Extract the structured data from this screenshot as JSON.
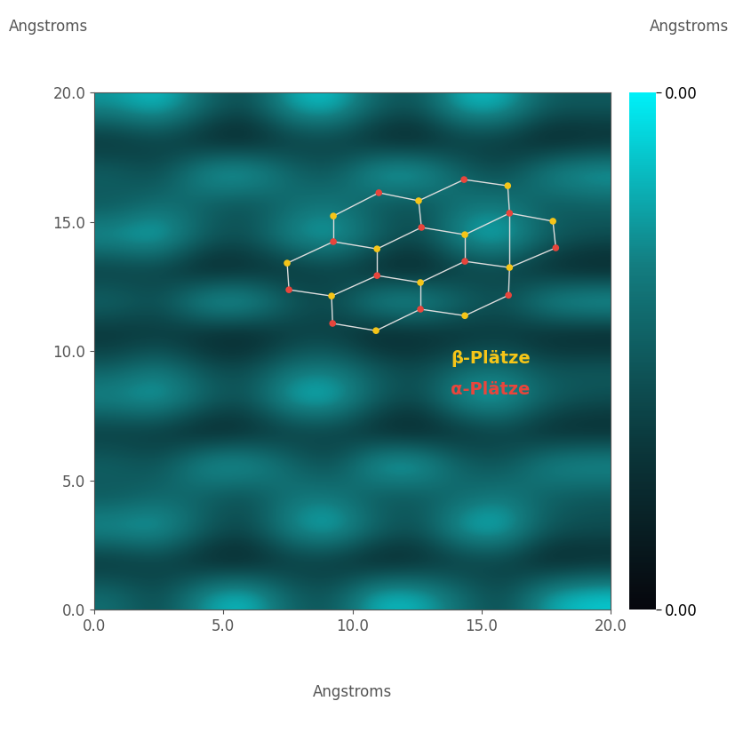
{
  "chart_data": {
    "type": "heatmap",
    "xlabel": "Angstroms",
    "ylabel": "Angstroms",
    "colorbar_label": "Angstroms",
    "xlim": [
      0,
      20
    ],
    "ylim": [
      0,
      20
    ],
    "xticks": [
      {
        "value": 0,
        "label": "0.0"
      },
      {
        "value": 5,
        "label": "5.0"
      },
      {
        "value": 10,
        "label": "10.0"
      },
      {
        "value": 15,
        "label": "15.0"
      },
      {
        "value": 20,
        "label": "20.0"
      }
    ],
    "yticks": [
      {
        "value": 0,
        "label": "0.0"
      },
      {
        "value": 5,
        "label": "5.0"
      },
      {
        "value": 10,
        "label": "10.0"
      },
      {
        "value": 15,
        "label": "15.0"
      },
      {
        "value": 20,
        "label": "20.0"
      }
    ],
    "color_range": [
      0,
      0.004
    ],
    "color_ticks": [
      {
        "value": 0,
        "label": "0.00"
      },
      {
        "value": 0.004,
        "label": "0.00"
      }
    ],
    "cells": [
      [
        0.003,
        0.0036,
        0.0024,
        0.0016,
        0.0032,
        0.0036,
        0.0022,
        0.0018,
        0.0034,
        0.0034,
        0.002,
        0.002
      ],
      [
        0.001,
        0.0014,
        0.0008,
        0.0006,
        0.0012,
        0.0014,
        0.0008,
        0.0006,
        0.0012,
        0.0012,
        0.0006,
        0.0008
      ],
      [
        0.0022,
        0.0016,
        0.0032,
        0.0036,
        0.0024,
        0.0018,
        0.0034,
        0.0036,
        0.0022,
        0.0016,
        0.003,
        0.0034
      ],
      [
        0.0018,
        0.0024,
        0.002,
        0.0016,
        0.0022,
        0.0026,
        0.0018,
        0.0016,
        0.0024,
        0.0026,
        0.0018,
        0.002
      ],
      [
        0.0032,
        0.0036,
        0.0022,
        0.0018,
        0.003,
        0.0034,
        0.0024,
        0.0016,
        0.0032,
        0.0036,
        0.0022,
        0.0018
      ],
      [
        0.0012,
        0.0014,
        0.0006,
        0.0008,
        0.001,
        0.0014,
        0.0008,
        0.0006,
        0.0012,
        0.0014,
        0.0008,
        0.0006
      ],
      [
        0.0024,
        0.0018,
        0.0034,
        0.0036,
        0.0022,
        0.0016,
        0.0032,
        0.0034,
        0.0024,
        0.0018,
        0.0032,
        0.0036
      ],
      [
        0.001,
        0.0012,
        0.0008,
        0.0006,
        0.0012,
        0.0014,
        0.0006,
        0.0008,
        0.001,
        0.0012,
        0.0008,
        0.0006
      ],
      [
        0.002,
        0.0026,
        0.0018,
        0.0016,
        0.0024,
        0.0026,
        0.002,
        0.0016,
        0.0022,
        0.0024,
        0.0018,
        0.002
      ],
      [
        0.003,
        0.0034,
        0.0024,
        0.0018,
        0.0034,
        0.0036,
        0.0022,
        0.0016,
        0.0032,
        0.0034,
        0.0022,
        0.0018
      ],
      [
        0.0012,
        0.0012,
        0.0006,
        0.0008,
        0.0012,
        0.0014,
        0.0008,
        0.0006,
        0.001,
        0.0014,
        0.0008,
        0.0008
      ],
      [
        0.0022,
        0.0018,
        0.0032,
        0.0034,
        0.0024,
        0.0016,
        0.0034,
        0.0036,
        0.0022,
        0.0018,
        0.003,
        0.0032
      ],
      [
        0.0018,
        0.0022,
        0.002,
        0.0016,
        0.0024,
        0.0026,
        0.0018,
        0.0018,
        0.0022,
        0.0026,
        0.002,
        0.0018
      ],
      [
        0.0032,
        0.0034,
        0.0022,
        0.0016,
        0.003,
        0.0036,
        0.0024,
        0.0018,
        0.0034,
        0.0036,
        0.002,
        0.0018
      ],
      [
        0.001,
        0.0014,
        0.0008,
        0.0006,
        0.0012,
        0.0012,
        0.0006,
        0.0008,
        0.0012,
        0.0014,
        0.0006,
        0.0008
      ],
      [
        0.0024,
        0.0016,
        0.003,
        0.0036,
        0.0022,
        0.0018,
        0.0034,
        0.0034,
        0.0024,
        0.0016,
        0.0032,
        0.0036
      ]
    ],
    "overlay": {
      "series": [
        {
          "name": "β-Plätze",
          "color": "#f5c518",
          "x": [
            9.26,
            12.56,
            16.01,
            7.47,
            10.95,
            14.35,
            17.76,
            9.19,
            12.63,
            16.08,
            10.91,
            14.35
          ],
          "y": [
            15.22,
            15.81,
            16.39,
            13.4,
            13.95,
            14.5,
            15.02,
            12.13,
            12.65,
            13.23,
            10.79,
            11.37
          ]
        },
        {
          "name": "α-Plätze",
          "color": "#e8453c",
          "x": [
            11.02,
            14.32,
            9.26,
            12.67,
            16.08,
            7.54,
            10.95,
            14.35,
            17.87,
            9.23,
            12.63,
            16.04
          ],
          "y": [
            16.12,
            16.63,
            14.23,
            14.78,
            15.33,
            12.37,
            12.92,
            13.47,
            13.99,
            11.07,
            11.62,
            12.16
          ]
        }
      ]
    }
  }
}
